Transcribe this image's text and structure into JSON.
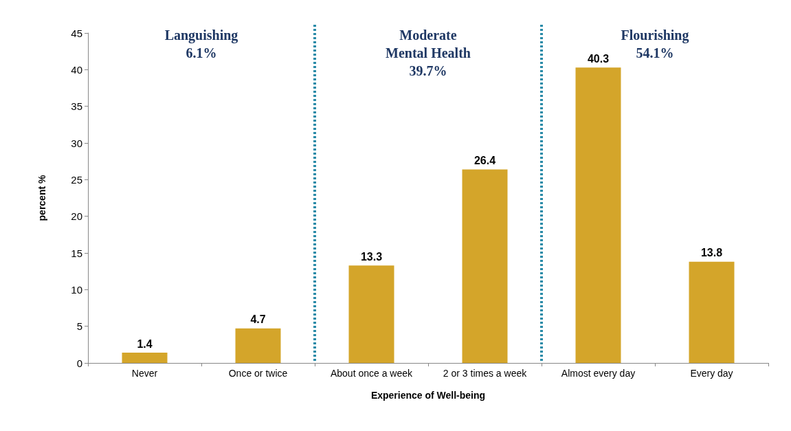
{
  "chart_data": {
    "type": "bar",
    "categories": [
      "Never",
      "Once or twice",
      "About once a week",
      "2 or 3 times a week",
      "Almost every day",
      "Every day"
    ],
    "values": [
      1.4,
      4.7,
      13.3,
      26.4,
      40.3,
      13.8
    ],
    "color": "#d4a52a",
    "data_labels": true,
    "xlabel": "Experience of Well-being",
    "ylabel": "percent %",
    "ylim": [
      0,
      45
    ],
    "yticks": [
      0,
      5,
      10,
      15,
      20,
      25,
      30,
      35,
      40,
      45
    ],
    "grid": false,
    "annotations": [
      "Languishing\n6.1%",
      "Moderate\nMental Health\n39.7%",
      "Flourishing\n54.1%"
    ]
  }
}
